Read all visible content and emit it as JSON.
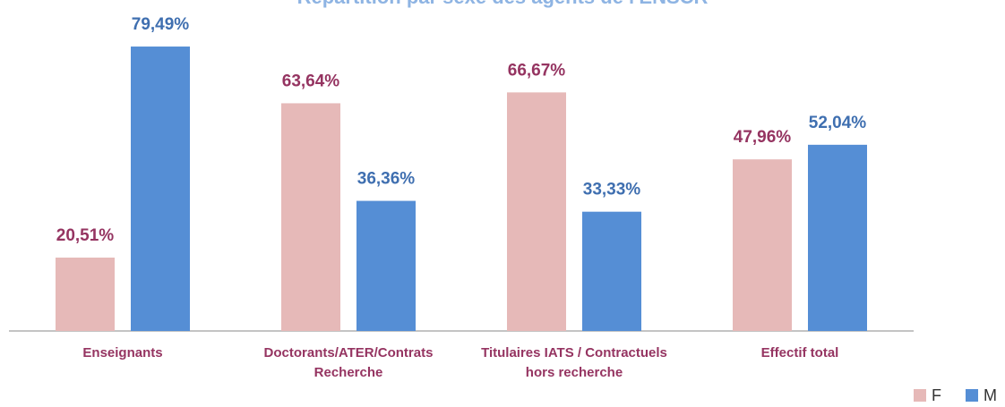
{
  "chart_data": {
    "type": "bar",
    "title": "Répartition par sexe des agents de l'ENSCR",
    "categories": [
      "Enseignants",
      "Doctorants/ATER/Contrats Recherche",
      "Titulaires IATS / Contractuels hors recherche",
      "Effectif total"
    ],
    "series": [
      {
        "name": "F",
        "color": "#e6b9b8",
        "label_color": "#953461",
        "values": [
          20.51,
          63.64,
          66.67,
          47.96
        ],
        "value_labels": [
          "20,51%",
          "63,64%",
          "66,67%",
          "47,96%"
        ]
      },
      {
        "name": "M",
        "color": "#558ed5",
        "label_color": "#3f6fb0",
        "values": [
          79.49,
          36.36,
          33.33,
          52.04
        ],
        "value_labels": [
          "79,49%",
          "36,36%",
          "33,33%",
          "52,04%"
        ]
      }
    ],
    "ylim": [
      0,
      92.5
    ],
    "legend": "bottom-right"
  }
}
